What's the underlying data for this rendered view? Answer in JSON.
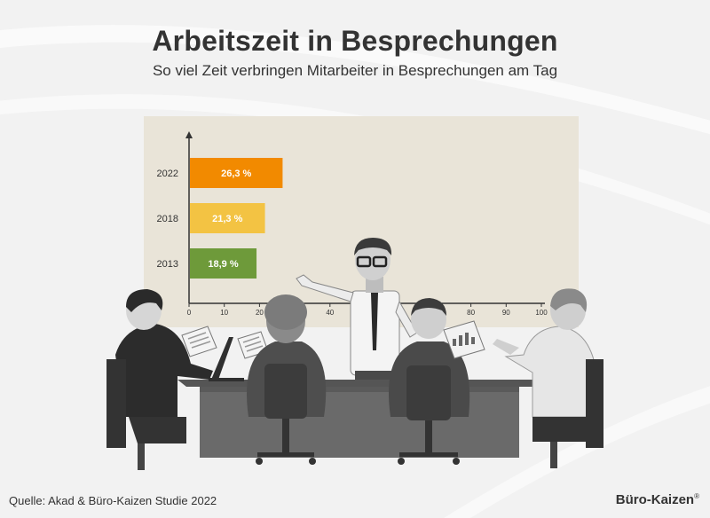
{
  "header": {
    "title": "Arbeitszeit in Besprechungen",
    "subtitle": "So viel Zeit verbringen Mitarbeiter in Besprechungen am Tag"
  },
  "footer": {
    "source": "Quelle: Akad & Büro-Kaizen Studie 2022",
    "brand": "Büro-Kaizen",
    "brand_mark": "®"
  },
  "chart_data": {
    "type": "bar",
    "orientation": "horizontal",
    "categories": [
      "2022",
      "2018",
      "2013"
    ],
    "values": [
      26.3,
      21.3,
      18.9
    ],
    "value_labels": [
      "26,3 %",
      "21,3 %",
      "18,9 %"
    ],
    "bar_colors": [
      "#f28a00",
      "#f3c343",
      "#6e9a3a"
    ],
    "xlim": [
      0,
      100
    ],
    "xticks": [
      "0",
      "10",
      "20",
      "30",
      "40",
      "50",
      "60",
      "70",
      "80",
      "90",
      "100"
    ],
    "grid": false
  }
}
